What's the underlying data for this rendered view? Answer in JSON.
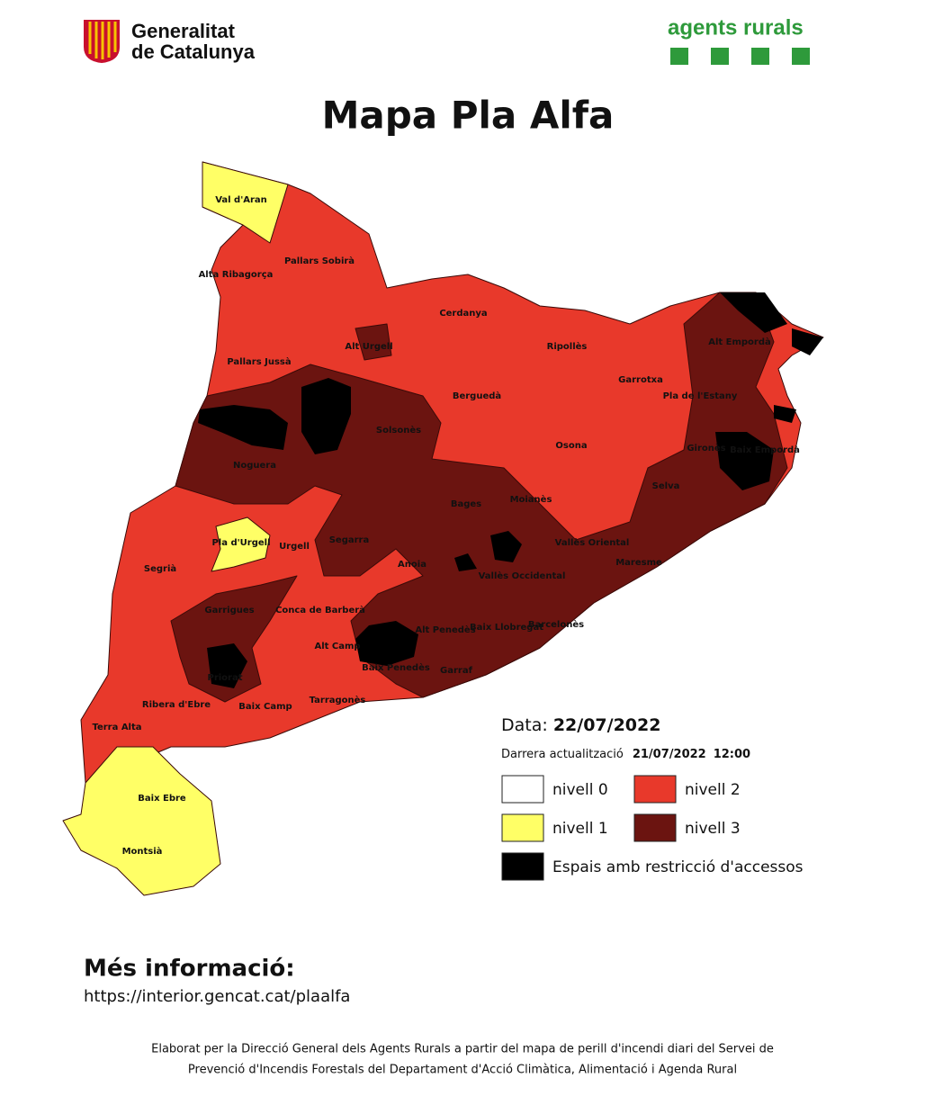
{
  "header": {
    "logo_left": [
      "Generalitat",
      "de Catalunya"
    ],
    "logo_right": "agents rurals"
  },
  "title": "Mapa Pla Alfa",
  "map": {
    "regions": [
      "Val d'Aran",
      "Pallars Sobirà",
      "Alta Ribagorça",
      "Cerdanya",
      "Alt Urgell",
      "Ripollès",
      "Alt Empordà",
      "Pallars Jussà",
      "Garrotxa",
      "Pla de l'Estany",
      "Berguedà",
      "Solsonès",
      "Osona",
      "Gironès",
      "Baix Empordà",
      "Noguera",
      "Selva",
      "Moianès",
      "Bages",
      "Segarra",
      "Pla d'Urgell",
      "Urgell",
      "Vallès Oriental",
      "Segrià",
      "Maresme",
      "Anoia",
      "Vallès Occidental",
      "Conca de Barberà",
      "Garrigues",
      "Alt Penedès",
      "Baix Llobregat",
      "Barcelonès",
      "Alt Camp",
      "Baix Penedès",
      "Garraf",
      "Priorat",
      "Ribera d'Ebre",
      "Baix Camp",
      "Tarragonès",
      "Terra Alta",
      "Baix Ebre",
      "Montsià"
    ]
  },
  "legend": {
    "date_label": "Data:",
    "date": "22/07/2022",
    "update_label": "Darrera actualització",
    "update_date": "21/07/2022",
    "update_time": "12:00",
    "levels": [
      {
        "name": "nivell 0",
        "color": "#ffffff"
      },
      {
        "name": "nivell 1",
        "color": "#ffff66"
      },
      {
        "name": "nivell 2",
        "color": "#e8392b"
      },
      {
        "name": "nivell 3",
        "color": "#6b1410"
      }
    ],
    "restricted": {
      "name": "Espais amb restricció d'accessos",
      "color": "#000000"
    }
  },
  "info": {
    "heading": "Més informació:",
    "url": "https://interior.gencat.cat/plaalfa"
  },
  "footer": [
    "Elaborat per la Direcció General dels Agents Rurals a partir del mapa de perill d'incendi diari del Servei de",
    "Prevenció d'Incendis Forestals del Departament d'Acció Climàtica, Alimentació i Agenda Rural"
  ]
}
